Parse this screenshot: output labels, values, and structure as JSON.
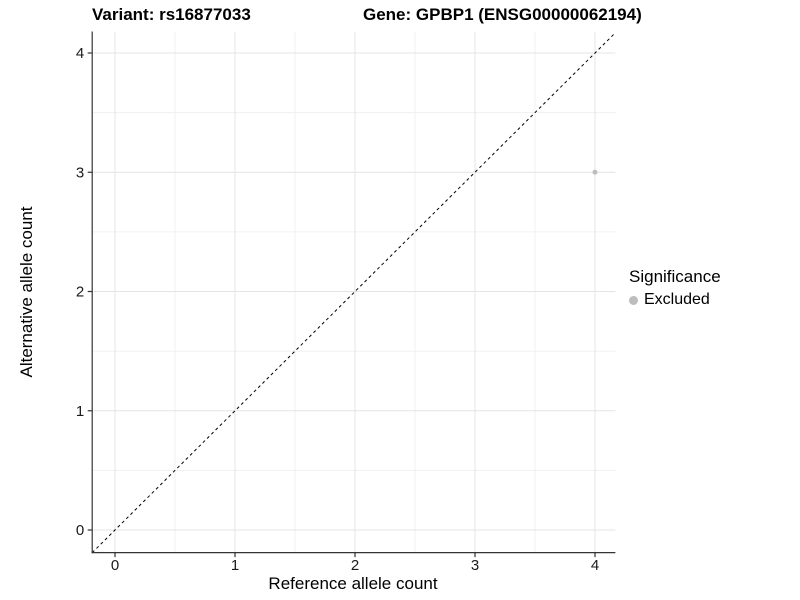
{
  "chart_data": {
    "type": "scatter",
    "title_left": "Variant: rs16877033",
    "title_right": "Gene: GPBP1 (ENSG00000062194)",
    "xlabel": "Reference allele count",
    "ylabel": "Alternative allele count",
    "x_ticks": [
      0,
      1,
      2,
      3,
      4
    ],
    "y_ticks": [
      0,
      1,
      2,
      3,
      4
    ],
    "xlim": [
      -0.19,
      4.17
    ],
    "ylim": [
      -0.19,
      4.18
    ],
    "grid": true,
    "identity_line": {
      "show": true,
      "style": "dashed",
      "color": "#000000",
      "slope": 1,
      "intercept": 0
    },
    "series": [
      {
        "name": "Excluded",
        "color": "#bdbdbd",
        "points": [
          {
            "x": 4,
            "y": 3
          }
        ]
      }
    ],
    "legend": {
      "title": "Significance",
      "position": "right",
      "items": [
        {
          "label": "Excluded",
          "color": "#bdbdbd"
        }
      ]
    }
  }
}
